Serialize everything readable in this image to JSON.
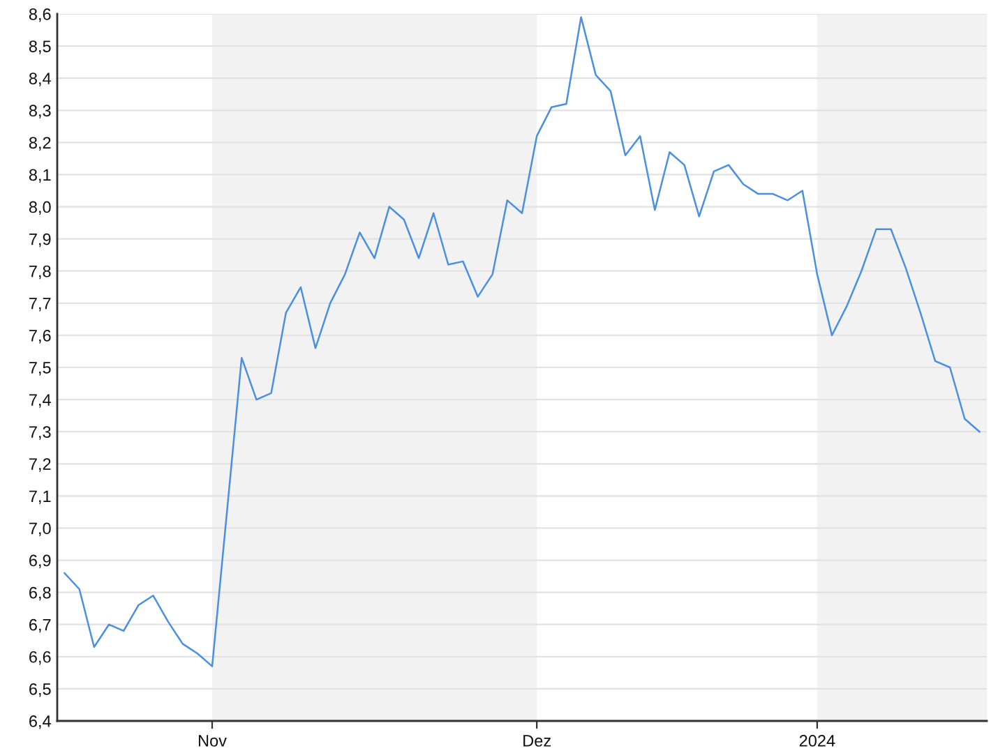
{
  "chart_data": {
    "type": "line",
    "categories": [
      null,
      null,
      null,
      null,
      null,
      null,
      null,
      null,
      null,
      null,
      "Nov",
      null,
      null,
      null,
      null,
      null,
      null,
      null,
      null,
      null,
      null,
      null,
      null,
      null,
      null,
      null,
      null,
      null,
      null,
      null,
      null,
      null,
      "Dez",
      null,
      null,
      null,
      null,
      null,
      null,
      null,
      null,
      null,
      null,
      null,
      null,
      null,
      null,
      null,
      null,
      null,
      null,
      "2024",
      null,
      null,
      null,
      null,
      null,
      null,
      null,
      null,
      null,
      null,
      null
    ],
    "values": [
      6.86,
      6.81,
      6.63,
      6.7,
      6.68,
      6.76,
      6.79,
      6.71,
      6.64,
      6.61,
      6.57,
      7.05,
      7.53,
      7.4,
      7.42,
      7.67,
      7.75,
      7.56,
      7.7,
      7.79,
      7.92,
      7.84,
      8.0,
      7.96,
      7.84,
      7.98,
      7.82,
      7.83,
      7.72,
      7.79,
      8.02,
      7.98,
      8.22,
      8.31,
      8.32,
      8.59,
      8.41,
      8.36,
      8.16,
      8.22,
      7.99,
      8.17,
      8.13,
      7.97,
      8.11,
      8.13,
      8.07,
      8.04,
      8.04,
      8.02,
      8.05,
      7.79,
      7.6,
      7.69,
      7.8,
      7.93,
      7.93,
      7.81,
      7.67,
      7.52,
      7.5,
      7.34,
      7.3
    ],
    "color": "#4a90e2",
    "ylim": [
      6.4,
      8.6
    ],
    "yticks": [
      {
        "value": 6.4,
        "label": "6,4"
      },
      {
        "value": 6.5,
        "label": "6,5"
      },
      {
        "value": 6.6,
        "label": "6,6"
      },
      {
        "value": 6.7,
        "label": "6,7"
      },
      {
        "value": 6.8,
        "label": "6,8"
      },
      {
        "value": 6.9,
        "label": "6,9"
      },
      {
        "value": 7.0,
        "label": "7,0"
      },
      {
        "value": 7.1,
        "label": "7,1"
      },
      {
        "value": 7.2,
        "label": "7,2"
      },
      {
        "value": 7.3,
        "label": "7,3"
      },
      {
        "value": 7.4,
        "label": "7,4"
      },
      {
        "value": 7.5,
        "label": "7,5"
      },
      {
        "value": 7.6,
        "label": "7,6"
      },
      {
        "value": 7.7,
        "label": "7,7"
      },
      {
        "value": 7.8,
        "label": "7,8"
      },
      {
        "value": 7.9,
        "label": "7,9"
      },
      {
        "value": 8.0,
        "label": "8,0"
      },
      {
        "value": 8.1,
        "label": "8,1"
      },
      {
        "value": 8.2,
        "label": "8,2"
      },
      {
        "value": 8.3,
        "label": "8,3"
      },
      {
        "value": 8.4,
        "label": "8,4"
      },
      {
        "value": 8.5,
        "label": "8,5"
      },
      {
        "value": 8.6,
        "label": "8,6"
      }
    ],
    "grid": "y",
    "bands": [
      {
        "axis": "x",
        "from": "Nov",
        "to": "Dez",
        "color": "#f2f2f2"
      }
    ]
  }
}
